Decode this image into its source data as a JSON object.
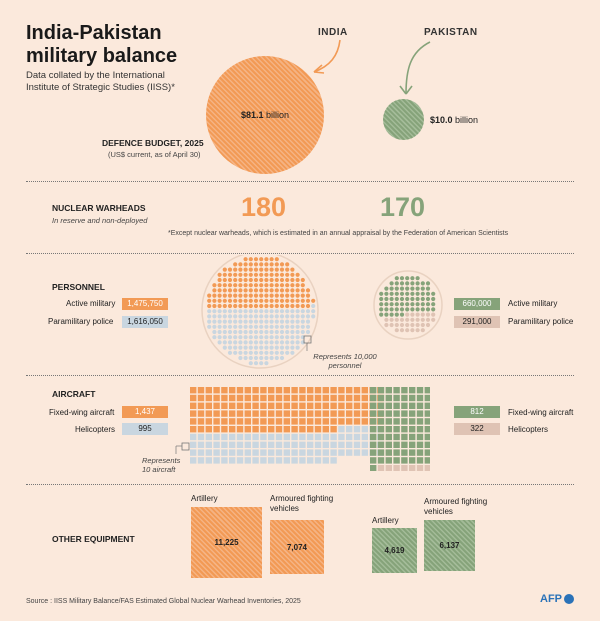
{
  "title": "India-Pakistan military balance",
  "subtitle": "Data collated by the International Institute of Strategic Studies (IISS)*",
  "countries": {
    "india": "INDIA",
    "pakistan": "PAKISTAN"
  },
  "colors": {
    "india": "#f29a55",
    "pakistan": "#86a37a",
    "india_reserve": "#c9d6e0",
    "pakistan_reserve": "#dfc3b4",
    "background": "#fbe9dc"
  },
  "budget": {
    "label": "DEFENCE BUDGET, 2025",
    "sublabel": "(US$ current, as of April 30)",
    "india_value": "$81.1",
    "india_unit": "billion",
    "pakistan_value": "$10.0",
    "pakistan_unit": "billion"
  },
  "nuclear": {
    "label": "NUCLEAR WARHEADS",
    "sublabel": "In reserve and non-deployed",
    "india": "180",
    "pakistan": "170",
    "footnote": "*Except nuclear warheads, which is estimated in an annual appraisal by the Federation of American Scientists"
  },
  "personnel": {
    "label": "PERSONNEL",
    "active_label": "Active military",
    "para_label": "Paramilitary police",
    "india_active": "1,475,750",
    "india_para": "1,616,050",
    "pakistan_active": "660,000",
    "pakistan_para": "291,000",
    "legend": "Represents 10,000 personnel"
  },
  "aircraft": {
    "label": "AIRCRAFT",
    "fixed_label": "Fixed-wing aircraft",
    "heli_label": "Helicopters",
    "india_fixed": "1,437",
    "india_heli": "995",
    "pakistan_fixed": "812",
    "pakistan_heli": "322",
    "legend": "Represents 10 aircraft"
  },
  "equipment": {
    "label": "OTHER EQUIPMENT",
    "artillery_label": "Artillery",
    "afv_label": "Armoured fighting vehicles",
    "india_artillery": "11,225",
    "india_afv": "7,074",
    "pakistan_artillery": "4,619",
    "pakistan_afv": "6,137"
  },
  "source": "Source : IISS Military Balance/FAS Estimated Global Nuclear Warhead Inventories, 2025",
  "logo": "AFP",
  "chart_data": {
    "type": "table",
    "categories": [
      "Defence budget 2025 (US$ billion)",
      "Nuclear warheads",
      "Active military",
      "Paramilitary police",
      "Fixed-wing aircraft",
      "Helicopters",
      "Artillery",
      "Armoured fighting vehicles"
    ],
    "series": [
      {
        "name": "INDIA",
        "values": [
          81.1,
          180,
          1475750,
          1616050,
          1437,
          995,
          11225,
          7074
        ]
      },
      {
        "name": "PAKISTAN",
        "values": [
          10.0,
          170,
          660000,
          291000,
          812,
          322,
          4619,
          6137
        ]
      }
    ]
  }
}
